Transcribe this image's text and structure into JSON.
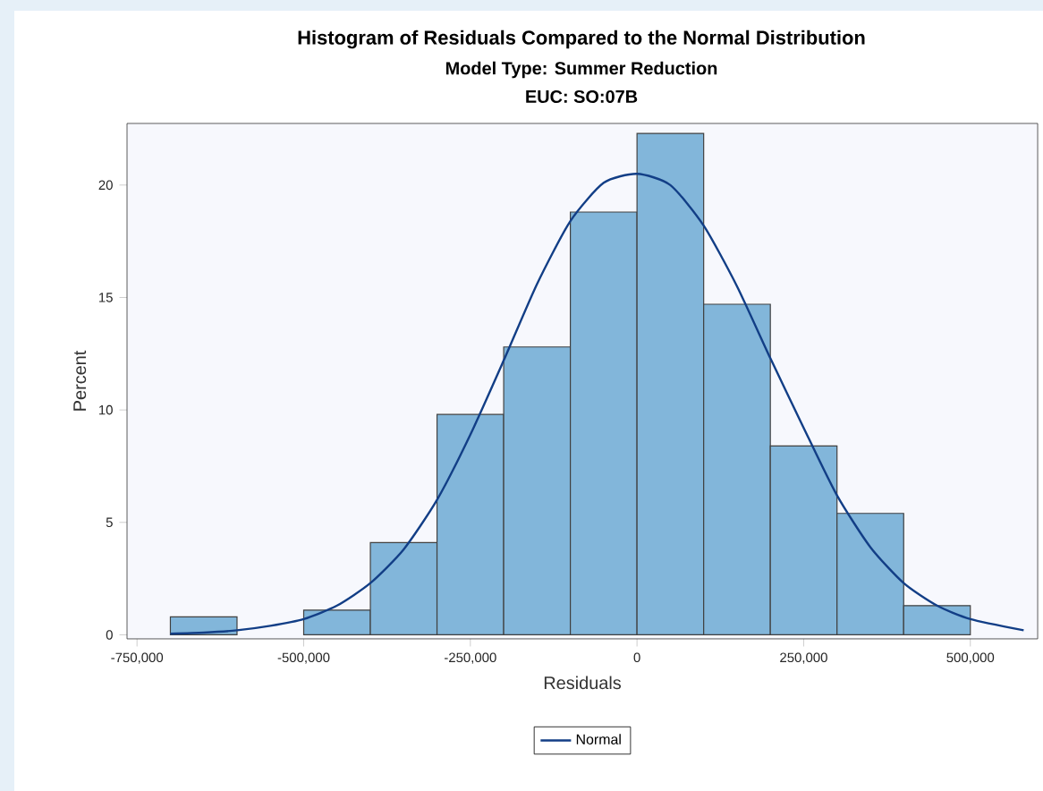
{
  "chart_data": {
    "type": "histogram",
    "title": "Histogram of Residuals Compared to the Normal Distribution",
    "subtitle": "Model Type: Summer Reduction",
    "annotations": [
      "EUC: SO:07B"
    ],
    "xlabel": "Residuals",
    "ylabel": "Percent",
    "xlim": [
      -765000,
      601000
    ],
    "ylim": [
      -0.18,
      22.74
    ],
    "xticks": [
      {
        "value": -750000,
        "label": "-750,000"
      },
      {
        "value": -500000,
        "label": "-500,000"
      },
      {
        "value": -250000,
        "label": "-250,000"
      },
      0,
      {
        "value": 250000,
        "label": "250,000"
      },
      {
        "value": 500000,
        "label": "500,000"
      }
    ],
    "yticks": [
      0,
      5,
      10,
      15,
      20
    ],
    "grid": false,
    "legend": "bottom",
    "series": [
      {
        "color": "#82b6da",
        "bins": [
          -700000,
          -600000,
          -500000,
          -400000,
          -300000,
          -200000,
          -100000,
          0,
          100000,
          200000,
          300000,
          400000,
          500000
        ],
        "values": [
          0.8,
          0,
          1.1,
          4.1,
          9.8,
          12.8,
          18.8,
          22.3,
          14.7,
          8.4,
          5.4,
          1.3
        ]
      },
      {
        "type": "line",
        "name": "Normal",
        "color": "#123e86",
        "x": [
          -700000,
          -650000,
          -600000,
          -550000,
          -500000,
          -450000,
          -400000,
          -350000,
          -300000,
          -250000,
          -200000,
          -150000,
          -100000,
          -50000,
          0,
          50000,
          100000,
          150000,
          200000,
          250000,
          300000,
          350000,
          400000,
          450000,
          500000,
          580000
        ],
        "values": [
          0.05,
          0.1,
          0.2,
          0.4,
          0.7,
          1.3,
          2.3,
          3.8,
          6.0,
          8.9,
          12.2,
          15.6,
          18.4,
          20.1,
          20.5,
          20.0,
          18.2,
          15.5,
          12.3,
          9.2,
          6.2,
          3.9,
          2.3,
          1.3,
          0.7,
          0.2
        ]
      }
    ]
  }
}
